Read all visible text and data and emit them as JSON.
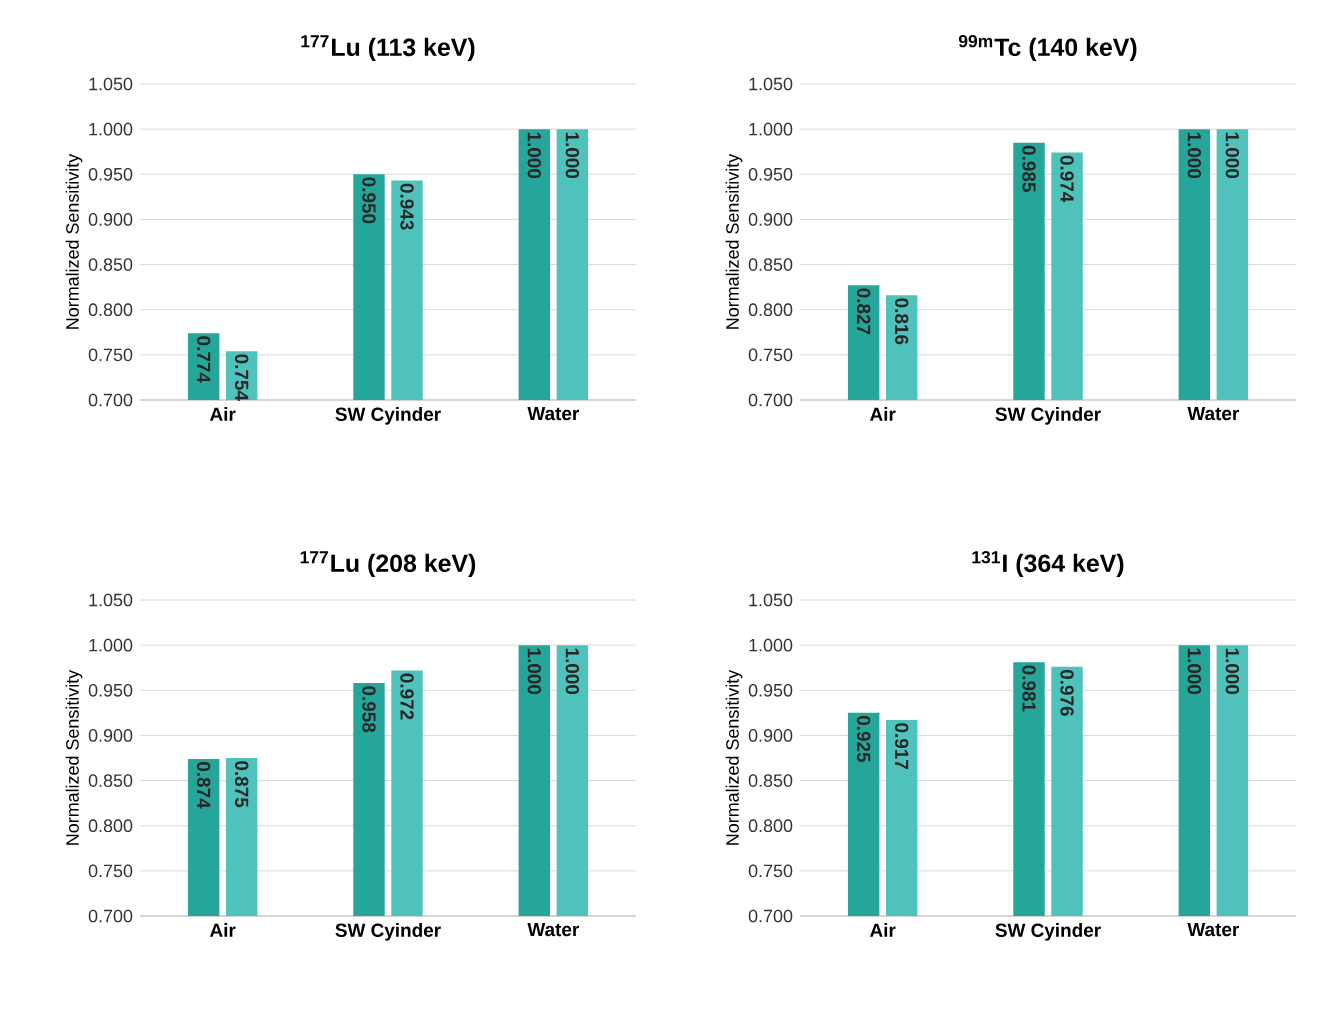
{
  "chart_data": [
    {
      "type": "bar",
      "title": "$^{177}$Lu (113 keV)",
      "ylabel": "Normalized Sensitivity",
      "categories": [
        "Air",
        "SW Cyinder",
        "Water"
      ],
      "series": [
        {
          "color": "#26a69a",
          "values": [
            0.774,
            0.95,
            1.0
          ],
          "value_labels": [
            "0.774",
            "0.950",
            "1.000"
          ]
        },
        {
          "color": "#4fc3bb",
          "values": [
            0.754,
            0.943,
            1.0
          ],
          "value_labels": [
            "0.754",
            "0.943",
            "1.000"
          ]
        }
      ],
      "ylim": [
        0.7,
        1.05
      ],
      "yticks": [
        {
          "value": 0.7,
          "label": "0.700"
        },
        {
          "value": 0.75,
          "label": "0.750"
        },
        {
          "value": 0.8,
          "label": "0.800"
        },
        {
          "value": 0.85,
          "label": "0.850"
        },
        {
          "value": 0.9,
          "label": "0.900"
        },
        {
          "value": 0.95,
          "label": "0.950"
        },
        {
          "value": 1.0,
          "label": "1.000"
        },
        {
          "value": 1.05,
          "label": "1.050"
        }
      ],
      "grid": "y"
    },
    {
      "type": "bar",
      "title": "$^{99m}$Tc (140 keV)",
      "ylabel": "Normalized Sensitivity",
      "categories": [
        "Air",
        "SW Cyinder",
        "Water"
      ],
      "series": [
        {
          "color": "#26a69a",
          "values": [
            0.827,
            0.985,
            1.0
          ],
          "value_labels": [
            "0.827",
            "0.985",
            "1.000"
          ]
        },
        {
          "color": "#4fc3bb",
          "values": [
            0.816,
            0.974,
            1.0
          ],
          "value_labels": [
            "0.816",
            "0.974",
            "1.000"
          ]
        }
      ],
      "ylim": [
        0.7,
        1.05
      ],
      "yticks": [
        {
          "value": 0.7,
          "label": "0.700"
        },
        {
          "value": 0.75,
          "label": "0.750"
        },
        {
          "value": 0.8,
          "label": "0.800"
        },
        {
          "value": 0.85,
          "label": "0.850"
        },
        {
          "value": 0.9,
          "label": "0.900"
        },
        {
          "value": 0.95,
          "label": "0.950"
        },
        {
          "value": 1.0,
          "label": "1.000"
        },
        {
          "value": 1.05,
          "label": "1.050"
        }
      ],
      "grid": "y"
    },
    {
      "type": "bar",
      "title": "$^{177}$Lu (208 keV)",
      "ylabel": "Normalized Sensitivity",
      "categories": [
        "Air",
        "SW Cyinder",
        "Water"
      ],
      "series": [
        {
          "color": "#26a69a",
          "values": [
            0.874,
            0.958,
            1.0
          ],
          "value_labels": [
            "0.874",
            "0.958",
            "1.000"
          ]
        },
        {
          "color": "#4fc3bb",
          "values": [
            0.875,
            0.972,
            1.0
          ],
          "value_labels": [
            "0.875",
            "0.972",
            "1.000"
          ]
        }
      ],
      "ylim": [
        0.7,
        1.05
      ],
      "yticks": [
        {
          "value": 0.7,
          "label": "0.700"
        },
        {
          "value": 0.75,
          "label": "0.750"
        },
        {
          "value": 0.8,
          "label": "0.800"
        },
        {
          "value": 0.85,
          "label": "0.850"
        },
        {
          "value": 0.9,
          "label": "0.900"
        },
        {
          "value": 0.95,
          "label": "0.950"
        },
        {
          "value": 1.0,
          "label": "1.000"
        },
        {
          "value": 1.05,
          "label": "1.050"
        }
      ],
      "grid": "y"
    },
    {
      "type": "bar",
      "title": "$^{131}$I (364 keV)",
      "ylabel": "Normalized Sensitivity",
      "categories": [
        "Air",
        "SW Cyinder",
        "Water"
      ],
      "series": [
        {
          "color": "#26a69a",
          "values": [
            0.925,
            0.981,
            1.0
          ],
          "value_labels": [
            "0.925",
            "0.981",
            "1.000"
          ]
        },
        {
          "color": "#4fc3bb",
          "values": [
            0.917,
            0.976,
            1.0
          ],
          "value_labels": [
            "0.917",
            "0.976",
            "1.000"
          ]
        }
      ],
      "ylim": [
        0.7,
        1.05
      ],
      "yticks": [
        {
          "value": 0.7,
          "label": "0.700"
        },
        {
          "value": 0.75,
          "label": "0.750"
        },
        {
          "value": 0.8,
          "label": "0.800"
        },
        {
          "value": 0.85,
          "label": "0.850"
        },
        {
          "value": 0.9,
          "label": "0.900"
        },
        {
          "value": 0.95,
          "label": "0.950"
        },
        {
          "value": 1.0,
          "label": "1.000"
        },
        {
          "value": 1.05,
          "label": "1.050"
        }
      ],
      "grid": "y"
    }
  ]
}
